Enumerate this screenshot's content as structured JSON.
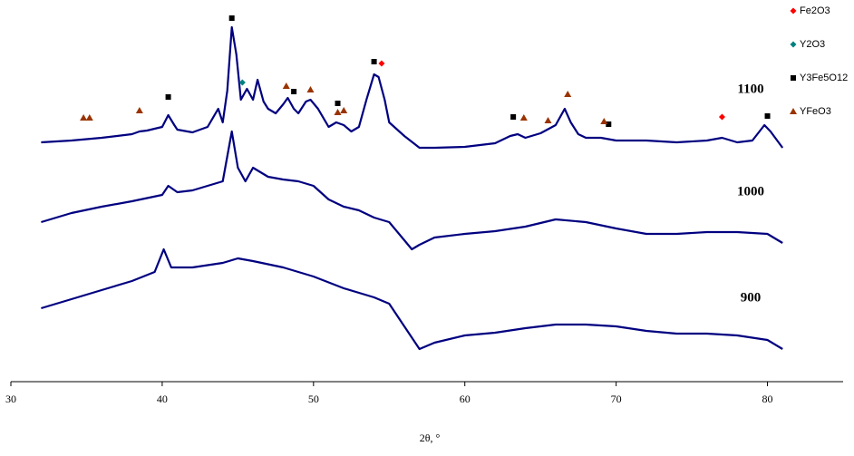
{
  "chart_data": {
    "type": "line",
    "x_label": "2θ, °",
    "xlim": [
      30,
      85
    ],
    "ylim": [
      0,
      420
    ],
    "xticks": [
      30,
      40,
      50,
      60,
      70,
      80
    ],
    "series": [
      {
        "name": "1100",
        "color": "#000080",
        "x": [
          32,
          34,
          36,
          38,
          38.5,
          39,
          40,
          40.4,
          40.8,
          41,
          42,
          43,
          43.7,
          44,
          44.3,
          44.6,
          44.9,
          45.2,
          45.6,
          46,
          46.3,
          46.7,
          47,
          47.5,
          48,
          48.3,
          48.7,
          49,
          49.5,
          49.8,
          50.3,
          51,
          51.5,
          52,
          52.5,
          53,
          53.5,
          54,
          54.3,
          54.7,
          55,
          56,
          57,
          58,
          60,
          62,
          63,
          63.5,
          64,
          65,
          66,
          66.6,
          67,
          67.5,
          68,
          69,
          70,
          72,
          74,
          76,
          77,
          78,
          79,
          79.8,
          80.2,
          81
        ],
        "values": [
          264,
          266,
          269,
          273,
          276,
          277,
          281,
          294,
          283,
          278,
          275,
          281,
          301,
          286,
          321,
          391,
          361,
          311,
          323,
          311,
          333,
          309,
          301,
          296,
          306,
          313,
          301,
          296,
          309,
          311,
          301,
          281,
          286,
          283,
          276,
          281,
          311,
          339,
          336,
          311,
          286,
          271,
          258,
          258,
          259,
          263,
          271,
          273,
          269,
          274,
          283,
          301,
          286,
          273,
          269,
          269,
          266,
          266,
          264,
          266,
          269,
          264,
          266,
          283,
          276,
          258
        ]
      },
      {
        "name": "1000",
        "color": "#000080",
        "x": [
          32,
          34,
          36,
          38,
          40,
          40.4,
          41,
          42,
          43,
          44,
          44.6,
          45,
          45.5,
          46,
          47,
          48,
          49,
          50,
          51,
          52,
          53,
          54,
          55,
          56,
          56.5,
          57,
          58,
          60,
          62,
          64,
          66,
          68,
          70,
          72,
          74,
          76,
          78,
          80,
          81
        ],
        "values": [
          176,
          186,
          193,
          199,
          206,
          216,
          209,
          211,
          216,
          221,
          276,
          236,
          221,
          236,
          226,
          223,
          221,
          216,
          201,
          193,
          189,
          181,
          176,
          156,
          146,
          151,
          159,
          163,
          166,
          171,
          179,
          176,
          169,
          163,
          163,
          165,
          165,
          163,
          153
        ]
      },
      {
        "name": "900",
        "color": "#000080",
        "x": [
          32,
          34,
          36,
          38,
          39.5,
          40.1,
          40.6,
          42,
          44,
          45,
          46,
          48,
          50,
          52,
          54,
          55,
          56,
          57,
          58,
          60,
          62,
          64,
          66,
          68,
          70,
          72,
          74,
          76,
          78,
          80,
          81
        ],
        "values": [
          81,
          91,
          101,
          111,
          121,
          146,
          126,
          126,
          131,
          136,
          133,
          126,
          116,
          103,
          93,
          86,
          61,
          36,
          43,
          51,
          54,
          59,
          63,
          63,
          61,
          56,
          53,
          53,
          51,
          46,
          36
        ]
      }
    ],
    "markers": [
      {
        "name": "Fe2O3",
        "color": "#ff0000",
        "shape": "diamond",
        "x": [
          54.5,
          77
        ],
        "values": [
          351,
          292
        ]
      },
      {
        "name": "Y2O3",
        "color": "#008080",
        "shape": "diamond",
        "x": [
          45.3
        ],
        "values": [
          330
        ]
      },
      {
        "name": "Y3Fe5O12",
        "color": "#000000",
        "shape": "square",
        "x": [
          44.6,
          40.4,
          48.7,
          51.6,
          54,
          63.2,
          69.5,
          80
        ],
        "values": [
          401,
          314,
          320,
          307,
          353,
          292,
          284,
          293
        ]
      },
      {
        "name": "YFeO3",
        "color": "#993300",
        "shape": "triangle",
        "x": [
          34.8,
          35.2,
          38.5,
          48.2,
          49.8,
          51.6,
          52.0,
          63.9,
          65.5,
          66.8,
          69.2
        ],
        "values": [
          291,
          291,
          299,
          326,
          322,
          297,
          299,
          291,
          288,
          317,
          287
        ]
      }
    ]
  }
}
